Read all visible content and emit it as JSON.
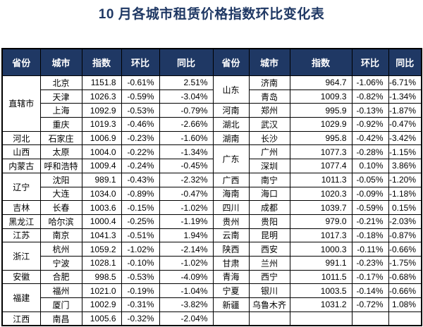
{
  "title": "10 月各城市租赁价格指数环比变化表",
  "colors": {
    "header_bg": "#1F3864",
    "header_text": "#FFFFFF",
    "title_text": "#1F3864",
    "border": "#000000"
  },
  "table": {
    "headers": [
      "省份",
      "城市",
      "指数",
      "环比",
      "同比"
    ],
    "left_groups": [
      {
        "province": "直辖市",
        "cities": [
          {
            "city": "北京",
            "index": "1151.8",
            "mom": "-0.61%",
            "yoy": "2.51%"
          },
          {
            "city": "天津",
            "index": "1026.3",
            "mom": "-0.59%",
            "yoy": "-3.04%"
          },
          {
            "city": "上海",
            "index": "1092.9",
            "mom": "-0.53%",
            "yoy": "-0.79%"
          },
          {
            "city": "重庆",
            "index": "1019.3",
            "mom": "-0.46%",
            "yoy": "-2.66%"
          }
        ]
      },
      {
        "province": "河北",
        "cities": [
          {
            "city": "石家庄",
            "index": "1006.9",
            "mom": "-0.23%",
            "yoy": "-1.60%"
          }
        ]
      },
      {
        "province": "山西",
        "cities": [
          {
            "city": "太原",
            "index": "1004.0",
            "mom": "-0.22%",
            "yoy": "-1.34%"
          }
        ]
      },
      {
        "province": "内蒙古",
        "cities": [
          {
            "city": "呼和浩特",
            "index": "1009.4",
            "mom": "-0.24%",
            "yoy": "-0.45%"
          }
        ]
      },
      {
        "province": "辽宁",
        "cities": [
          {
            "city": "沈阳",
            "index": "989.1",
            "mom": "-0.43%",
            "yoy": "-2.32%"
          },
          {
            "city": "大连",
            "index": "1034.0",
            "mom": "-0.89%",
            "yoy": "-0.47%"
          }
        ]
      },
      {
        "province": "吉林",
        "cities": [
          {
            "city": "长春",
            "index": "1003.6",
            "mom": "-0.15%",
            "yoy": "-1.02%"
          }
        ]
      },
      {
        "province": "黑龙江",
        "cities": [
          {
            "city": "哈尔滨",
            "index": "1000.4",
            "mom": "-0.25%",
            "yoy": "-1.19%"
          }
        ]
      },
      {
        "province": "江苏",
        "cities": [
          {
            "city": "南京",
            "index": "1041.3",
            "mom": "-0.51%",
            "yoy": "1.94%"
          }
        ]
      },
      {
        "province": "浙江",
        "cities": [
          {
            "city": "杭州",
            "index": "1059.2",
            "mom": "-1.02%",
            "yoy": "-2.14%"
          },
          {
            "city": "宁波",
            "index": "1028.1",
            "mom": "-0.10%",
            "yoy": "-1.02%"
          }
        ]
      },
      {
        "province": "安徽",
        "cities": [
          {
            "city": "合肥",
            "index": "998.5",
            "mom": "-0.53%",
            "yoy": "-4.09%"
          }
        ]
      },
      {
        "province": "福建",
        "cities": [
          {
            "city": "福州",
            "index": "1021.0",
            "mom": "-0.19%",
            "yoy": "-1.04%"
          },
          {
            "city": "厦门",
            "index": "1002.9",
            "mom": "-0.31%",
            "yoy": "-3.82%"
          }
        ]
      },
      {
        "province": "江西",
        "cities": [
          {
            "city": "南昌",
            "index": "1005.6",
            "mom": "-0.32%",
            "yoy": "-2.04%"
          }
        ]
      }
    ],
    "right_groups": [
      {
        "province": "山东",
        "cities": [
          {
            "city": "济南",
            "index": "964.7",
            "mom": "-1.06%",
            "yoy": "-6.71%"
          },
          {
            "city": "青岛",
            "index": "1009.3",
            "mom": "-0.82%",
            "yoy": "-1.34%"
          }
        ]
      },
      {
        "province": "河南",
        "cities": [
          {
            "city": "郑州",
            "index": "995.9",
            "mom": "-0.13%",
            "yoy": "-1.87%"
          }
        ]
      },
      {
        "province": "湖北",
        "cities": [
          {
            "city": "武汉",
            "index": "1029.9",
            "mom": "-0.92%",
            "yoy": "-0.47%"
          }
        ]
      },
      {
        "province": "湖南",
        "cities": [
          {
            "city": "长沙",
            "index": "995.8",
            "mom": "-0.42%",
            "yoy": "-3.42%"
          }
        ]
      },
      {
        "province": "广东",
        "cities": [
          {
            "city": "广州",
            "index": "1077.3",
            "mom": "-0.28%",
            "yoy": "-1.15%"
          },
          {
            "city": "深圳",
            "index": "1077.4",
            "mom": "0.10%",
            "yoy": "3.86%"
          }
        ]
      },
      {
        "province": "广西",
        "cities": [
          {
            "city": "南宁",
            "index": "1011.3",
            "mom": "-0.05%",
            "yoy": "-1.20%"
          }
        ]
      },
      {
        "province": "海南",
        "cities": [
          {
            "city": "海口",
            "index": "1020.3",
            "mom": "-0.09%",
            "yoy": "-1.18%"
          }
        ]
      },
      {
        "province": "四川",
        "cities": [
          {
            "city": "成都",
            "index": "1039.7",
            "mom": "-0.59%",
            "yoy": "0.15%"
          }
        ]
      },
      {
        "province": "贵州",
        "cities": [
          {
            "city": "贵阳",
            "index": "979.0",
            "mom": "-0.21%",
            "yoy": "-2.03%"
          }
        ]
      },
      {
        "province": "云南",
        "cities": [
          {
            "city": "昆明",
            "index": "1017.3",
            "mom": "-0.18%",
            "yoy": "-0.87%"
          }
        ]
      },
      {
        "province": "陕西",
        "cities": [
          {
            "city": "西安",
            "index": "1000.3",
            "mom": "-0.11%",
            "yoy": "-0.66%"
          }
        ]
      },
      {
        "province": "甘肃",
        "cities": [
          {
            "city": "兰州",
            "index": "991.1",
            "mom": "-0.23%",
            "yoy": "-1.75%"
          }
        ]
      },
      {
        "province": "青海",
        "cities": [
          {
            "city": "西宁",
            "index": "1011.5",
            "mom": "-0.17%",
            "yoy": "-0.68%"
          }
        ]
      },
      {
        "province": "宁夏",
        "cities": [
          {
            "city": "银川",
            "index": "1003.5",
            "mom": "-0.14%",
            "yoy": "-0.66%"
          }
        ]
      },
      {
        "province": "新疆",
        "cities": [
          {
            "city": "乌鲁木齐",
            "index": "1031.2",
            "mom": "-0.72%",
            "yoy": "1.08%"
          }
        ]
      },
      {
        "province": "",
        "cities": [
          {
            "city": "",
            "index": "",
            "mom": "",
            "yoy": ""
          }
        ]
      }
    ]
  }
}
